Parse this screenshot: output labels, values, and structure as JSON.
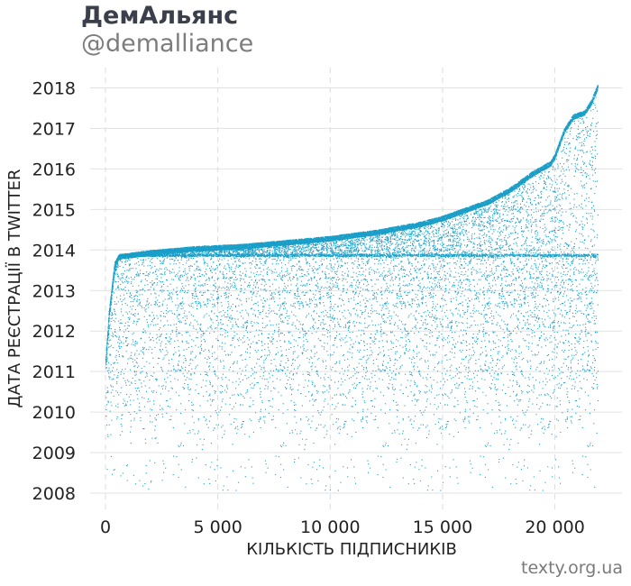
{
  "header": {
    "title": "ДемАльянс",
    "subtitle": "@demalliance"
  },
  "footer": {
    "source": "texty.org.ua"
  },
  "chart_data": {
    "type": "scatter",
    "title": "ДемАльянс",
    "subtitle": "@demalliance",
    "xlabel": "КІЛЬКІСТЬ ПІДПИСНИКІВ",
    "ylabel": "ДАТА РЕЄСТРАЦІЇ В TWITTER",
    "xlim": [
      -700,
      23000
    ],
    "ylim": [
      2007.6,
      2018.2
    ],
    "x_ticks": [
      0,
      5000,
      10000,
      15000,
      20000
    ],
    "x_tick_labels": [
      "0",
      "5 000",
      "10 000",
      "15 000",
      "20 000"
    ],
    "y_ticks": [
      2008,
      2009,
      2010,
      2011,
      2012,
      2013,
      2014,
      2015,
      2016,
      2017,
      2018
    ],
    "y_tick_labels": [
      "2008",
      "2009",
      "2010",
      "2011",
      "2012",
      "2013",
      "2014",
      "2015",
      "2016",
      "2017",
      "2018"
    ],
    "x_grid": "dashed",
    "y_grid": "solid",
    "point_color": "#1a9fc8",
    "points_total": 21900,
    "upper_envelope": {
      "x": [
        0,
        150,
        400,
        600,
        2000,
        4000,
        6000,
        8000,
        10000,
        12000,
        13000,
        14000,
        15000,
        16000,
        17000,
        18000,
        19000,
        19800,
        20000,
        20400,
        20800,
        21300,
        21600,
        21900
      ],
      "y": [
        2011.3,
        2012.5,
        2013.7,
        2013.9,
        2014.0,
        2014.1,
        2014.15,
        2014.25,
        2014.35,
        2014.5,
        2014.6,
        2014.7,
        2014.85,
        2015.05,
        2015.25,
        2015.55,
        2015.95,
        2016.2,
        2016.4,
        2017.0,
        2017.35,
        2017.45,
        2017.7,
        2018.1
      ]
    }
  }
}
